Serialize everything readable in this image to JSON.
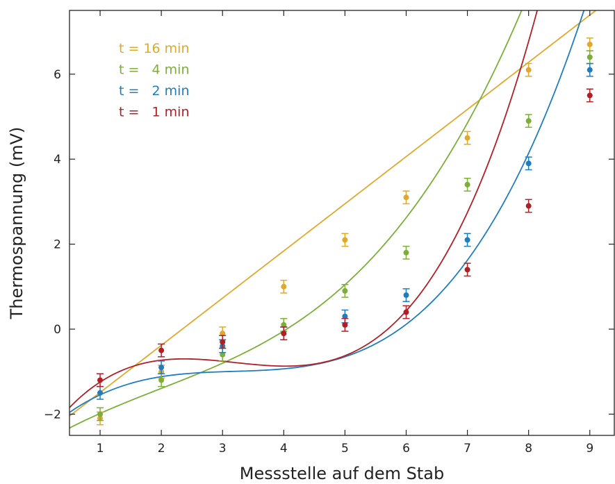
{
  "chart_data": {
    "type": "scatter",
    "title": "",
    "xlabel": "Messstelle auf dem Stab",
    "ylabel": "Thermospannung (mV)",
    "xlim": [
      0.5,
      9.4
    ],
    "ylim": [
      -2.5,
      7.5
    ],
    "xticks": [
      "1",
      "2",
      "3",
      "4",
      "5",
      "6",
      "7",
      "8",
      "9"
    ],
    "yticks": [
      "−2",
      "0",
      "2",
      "4",
      "6"
    ],
    "xtick_values": [
      1,
      2,
      3,
      4,
      5,
      6,
      7,
      8,
      9
    ],
    "ytick_values": [
      -2,
      0,
      2,
      4,
      6
    ],
    "grid": false,
    "legend_position": "top-left",
    "error_bar": 0.15,
    "series": [
      {
        "name": "t = 16 min",
        "color": "#e1a82c",
        "x": [
          1,
          2,
          3,
          4,
          5,
          6,
          7,
          8,
          9
        ],
        "y": [
          -2.1,
          -1.0,
          -0.1,
          1.0,
          2.1,
          3.1,
          4.5,
          6.1,
          6.7
        ],
        "fit": [
          -2.6,
          1.11,
          0,
          0
        ]
      },
      {
        "name": "t =   4 min",
        "color": "#7cae38",
        "x": [
          1,
          2,
          3,
          4,
          5,
          6,
          7,
          8,
          9
        ],
        "y": [
          -2.0,
          -1.2,
          -0.6,
          0.1,
          0.9,
          1.8,
          3.4,
          4.9,
          6.4
        ],
        "fit": [
          -2.73,
          0.88,
          -0.16,
          0.027
        ]
      },
      {
        "name": "t =   2 min",
        "color": "#1f7dbf",
        "x": [
          1,
          2,
          3,
          4,
          5,
          6,
          7,
          8,
          9
        ],
        "y": [
          -1.5,
          -0.9,
          -0.4,
          -0.1,
          0.3,
          0.8,
          2.1,
          3.9,
          6.1
        ],
        "fit": [
          -2.55,
          1.38,
          -0.42,
          0.044
        ]
      },
      {
        "name": "t =   1 min",
        "color": "#b31e25",
        "x": [
          1,
          2,
          3,
          4,
          5,
          6,
          7,
          8,
          9
        ],
        "y": [
          -1.2,
          -0.5,
          -0.3,
          -0.1,
          0.1,
          0.4,
          1.4,
          2.9,
          5.5
        ],
        "fit": [
          -2.75,
          2.15,
          -0.72,
          0.075
        ]
      }
    ]
  }
}
